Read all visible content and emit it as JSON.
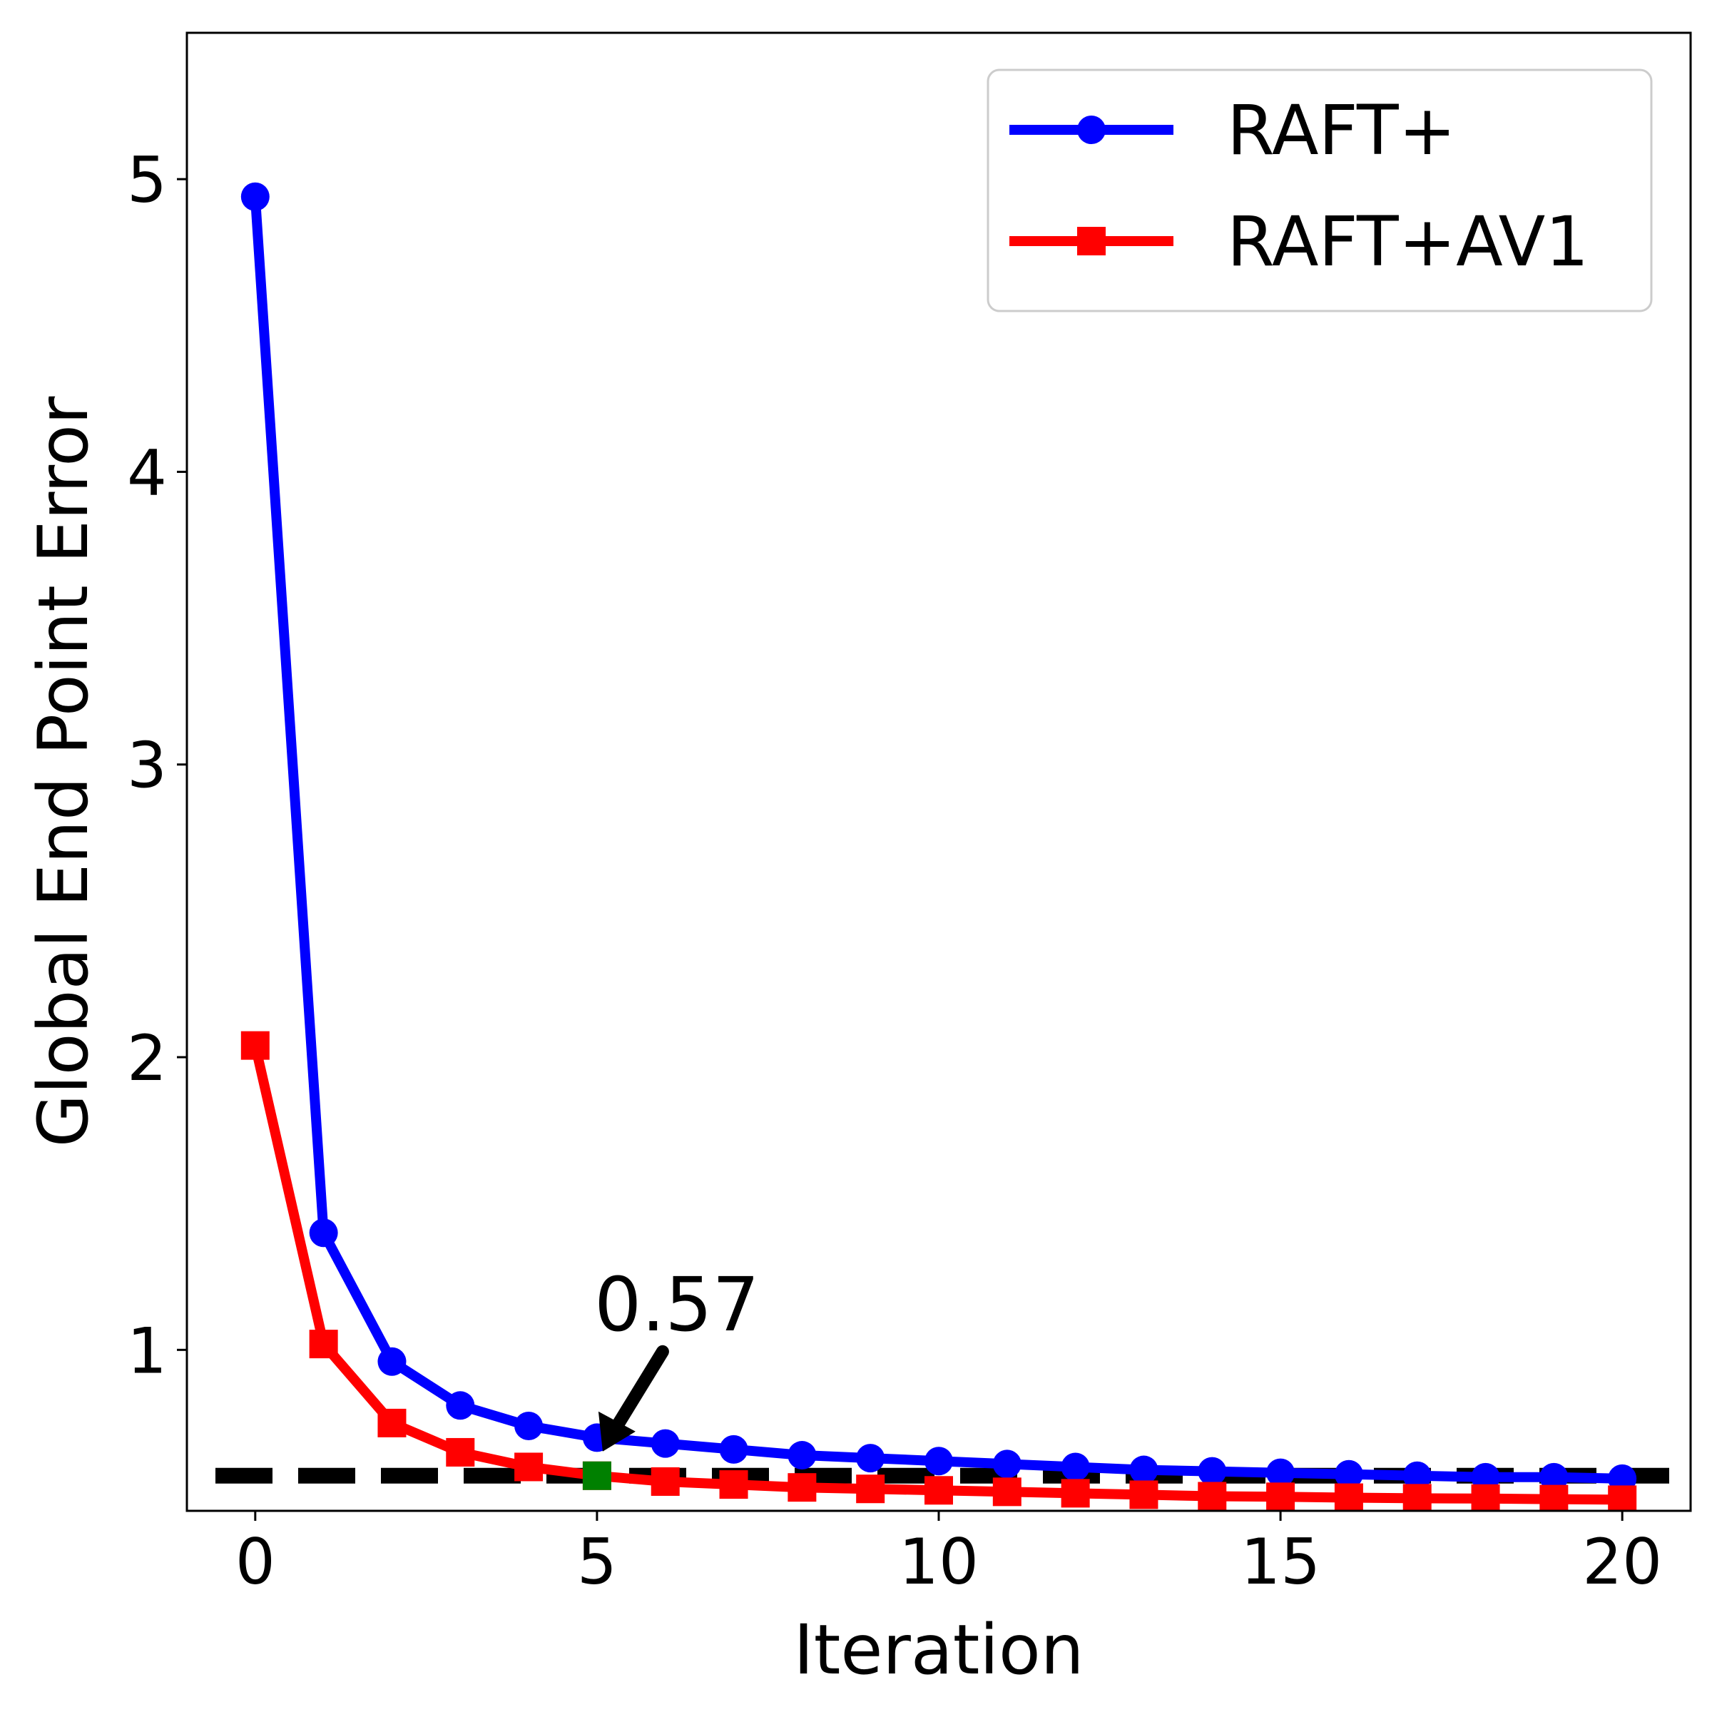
{
  "chart_data": {
    "type": "line",
    "title": "",
    "xlabel": "Iteration",
    "ylabel": "Global End Point Error",
    "xlim": [
      -1,
      21
    ],
    "ylim": [
      0.45,
      5.5
    ],
    "xticks": [
      0,
      5,
      10,
      15,
      20
    ],
    "yticks": [
      1,
      2,
      3,
      4,
      5
    ],
    "grid": false,
    "legend_position": "top-right",
    "x": [
      0,
      1,
      2,
      3,
      4,
      5,
      6,
      7,
      8,
      9,
      10,
      11,
      12,
      13,
      14,
      15,
      16,
      17,
      18,
      19,
      20
    ],
    "series": [
      {
        "name": "RAFT+",
        "color": "#0000ff",
        "marker": "circle",
        "values": [
          4.94,
          1.4,
          0.96,
          0.81,
          0.74,
          0.7,
          0.68,
          0.66,
          0.64,
          0.63,
          0.62,
          0.61,
          0.6,
          0.59,
          0.585,
          0.58,
          0.575,
          0.57,
          0.565,
          0.565,
          0.56
        ]
      },
      {
        "name": "RAFT+AV1",
        "color": "#ff0000",
        "marker": "square",
        "values": [
          2.04,
          1.02,
          0.75,
          0.65,
          0.6,
          0.57,
          0.55,
          0.54,
          0.53,
          0.525,
          0.52,
          0.515,
          0.51,
          0.505,
          0.5,
          0.498,
          0.495,
          0.493,
          0.492,
          0.49,
          0.488
        ]
      }
    ],
    "reference_line": {
      "y": 0.57,
      "color": "#000000",
      "style": "dashed"
    },
    "highlight_point": {
      "x": 5,
      "y": 0.57,
      "color": "#008000"
    },
    "annotation": {
      "text": "0.57",
      "x": 5,
      "y": 0.57
    }
  }
}
